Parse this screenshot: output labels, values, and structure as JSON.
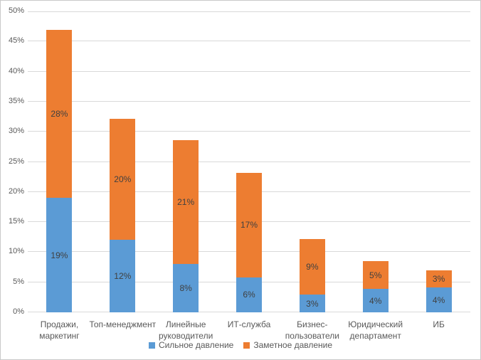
{
  "chart_data": {
    "type": "bar",
    "stacked": true,
    "title": "",
    "xlabel": "",
    "ylabel": "",
    "categories": [
      "Продажи, маркетинг",
      "Топ-менеджмент",
      "Линейные руководители",
      "ИТ-служба",
      "Бизнес-пользователи",
      "Юридический департамент",
      "ИБ"
    ],
    "series": [
      {
        "name": "Сильное давление",
        "color": "#5B9BD5",
        "values": [
          19,
          12,
          8,
          5.8,
          2.9,
          3.9,
          4.1
        ],
        "labels": [
          "19%",
          "12%",
          "8%",
          "6%",
          "3%",
          "4%",
          "4%"
        ]
      },
      {
        "name": "Заметное давление",
        "color": "#ED7D31",
        "values": [
          27.9,
          20.1,
          20.6,
          17.4,
          9.3,
          4.6,
          2.9
        ],
        "labels": [
          "28%",
          "20%",
          "21%",
          "17%",
          "9%",
          "5%",
          "3%"
        ]
      }
    ],
    "y_axis": {
      "min": 0,
      "max": 50,
      "ticks": [
        "0%",
        "5%",
        "10%",
        "15%",
        "20%",
        "25%",
        "30%",
        "35%",
        "40%",
        "45%",
        "50%"
      ]
    },
    "grid": true,
    "legend_position": "bottom",
    "colors": {
      "data_label": "#404040",
      "axis_text": "#595959",
      "gridline": "#d9d9d9",
      "border": "#c9c9c9",
      "background": "#ffffff"
    }
  }
}
